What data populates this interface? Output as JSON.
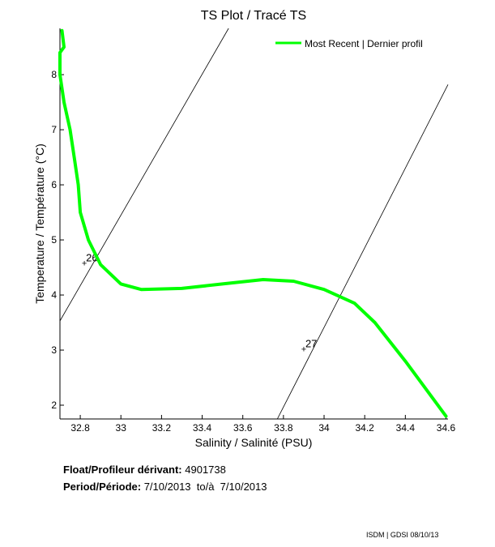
{
  "chart_data": {
    "type": "line",
    "title": "TS Plot / Tracé TS",
    "xlabel": "Salinity / Salinité (PSU)",
    "ylabel": "Temperature / Température (°C)",
    "xlim": [
      32.7,
      34.61
    ],
    "ylim": [
      1.75,
      8.84
    ],
    "xticks": [
      32.8,
      33,
      33.2,
      33.4,
      33.6,
      33.8,
      34,
      34.2,
      34.4,
      34.6
    ],
    "xtick_labels": [
      "32.8",
      "33",
      "33.2",
      "33.4",
      "33.6",
      "33.8",
      "34",
      "34.2",
      "34.4",
      "34.6"
    ],
    "yticks": [
      2,
      3,
      4,
      5,
      6,
      7,
      8
    ],
    "ytick_labels": [
      "2",
      "3",
      "4",
      "5",
      "6",
      "7",
      "8"
    ],
    "grid": false,
    "legend": {
      "placement": "top-right",
      "entries": [
        "Most Recent | Dernier profil"
      ]
    },
    "series": [
      {
        "name": "Most Recent | Dernier profil",
        "color": "#00ff00",
        "x": [
          32.71,
          32.72,
          32.7,
          32.7,
          32.72,
          32.75,
          32.77,
          32.79,
          32.8,
          32.84,
          32.9,
          33.0,
          33.1,
          33.3,
          33.5,
          33.7,
          33.85,
          34.0,
          34.15,
          34.25,
          34.4,
          34.5,
          34.6
        ],
        "y": [
          8.8,
          8.5,
          8.4,
          8.0,
          7.5,
          7.0,
          6.5,
          6.0,
          5.5,
          5.0,
          4.55,
          4.2,
          4.1,
          4.12,
          4.2,
          4.28,
          4.25,
          4.1,
          3.85,
          3.5,
          2.8,
          2.3,
          1.8
        ]
      }
    ],
    "density_contours": [
      {
        "label": "26",
        "x": [
          32.7,
          33.53
        ],
        "y": [
          3.53,
          8.84
        ],
        "label_at": [
          32.82,
          4.58
        ]
      },
      {
        "label": "27",
        "x": [
          33.77,
          34.61
        ],
        "y": [
          1.75,
          7.82
        ],
        "label_at": [
          33.9,
          3.02
        ]
      }
    ]
  },
  "info": {
    "float_label": "Float/Profileur dérivant:",
    "float_id": "4901738",
    "period_label": "Period/Période:",
    "period_value": "7/10/2013  to/à  7/10/2013"
  },
  "footer": "ISDM | GDSI  08/10/13"
}
